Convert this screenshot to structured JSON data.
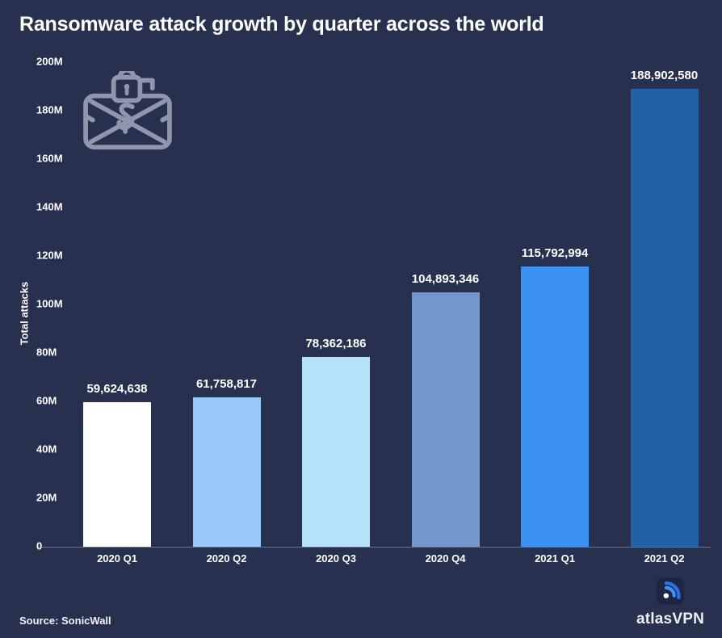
{
  "header": {
    "title": "Ransomware attack growth by quarter across the world"
  },
  "footer": {
    "source": "Source: SonicWall"
  },
  "brand": {
    "wordmark": "atlasVPN",
    "icon": "atlasvpn-signal-icon"
  },
  "icons": {
    "decor": "ransomware-locked-money-case-icon"
  },
  "colors": {
    "background": "#283050",
    "text": "#ffffff",
    "axis_line": "#6b7291",
    "decor_icon_gray": "#9096ac",
    "brand_blue_outer": "#2b72e8",
    "brand_blue_inner": "#3f93f6",
    "brand_tile": "#1d2645"
  },
  "chart_data": {
    "type": "bar",
    "title": "Ransomware attack growth by quarter across the world",
    "categories": [
      "2020 Q1",
      "2020 Q2",
      "2020 Q3",
      "2020 Q4",
      "2021 Q1",
      "2021 Q2"
    ],
    "values": [
      59624638,
      61758817,
      78362186,
      104893346,
      115792994,
      188902580
    ],
    "value_labels": [
      "59,624,638",
      "61,758,817",
      "78,362,186",
      "104,893,346",
      "115,792,994",
      "188,902,580"
    ],
    "bar_colors": [
      "#ffffff",
      "#98c9fa",
      "#b6e2f9",
      "#7399cc",
      "#3b92f2",
      "#2161a8"
    ],
    "xlabel": "",
    "ylabel": "Total attacks",
    "ylim": [
      0,
      200000000
    ],
    "y_ticks": [
      {
        "label": "0",
        "value": 0
      },
      {
        "label": "20M",
        "value": 20000000
      },
      {
        "label": "40M",
        "value": 40000000
      },
      {
        "label": "60M",
        "value": 60000000
      },
      {
        "label": "80M",
        "value": 80000000
      },
      {
        "label": "100M",
        "value": 100000000
      },
      {
        "label": "120M",
        "value": 120000000
      },
      {
        "label": "140M",
        "value": 140000000
      },
      {
        "label": "160M",
        "value": 160000000
      },
      {
        "label": "180M",
        "value": 180000000
      },
      {
        "label": "200M",
        "value": 200000000
      }
    ],
    "grid": false,
    "legend": "none"
  }
}
